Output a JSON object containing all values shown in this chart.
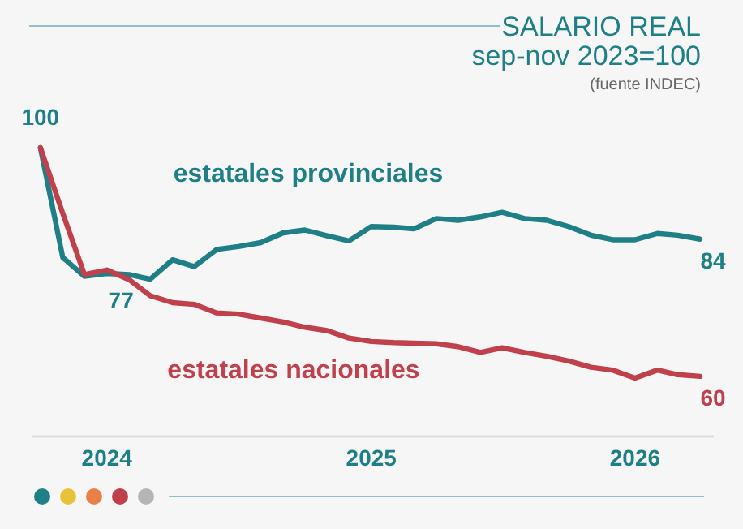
{
  "chart_data": {
    "type": "line",
    "title": "SALARIO REAL",
    "subtitle": "sep-nov 2023=100",
    "annotations": [
      "(fuente INDEC)"
    ],
    "x": [
      "2023-10",
      "2023-11",
      "2023-12",
      "2024-01",
      "2024-02",
      "2024-03",
      "2024-04",
      "2024-05",
      "2024-06",
      "2024-07",
      "2024-08",
      "2024-09",
      "2024-10",
      "2024-11",
      "2024-12",
      "2025-01",
      "2025-02",
      "2025-03",
      "2025-04",
      "2025-05",
      "2025-06",
      "2025-07",
      "2025-08",
      "2025-09",
      "2025-10",
      "2025-11",
      "2025-12",
      "2026-01",
      "2026-02",
      "2026-03",
      "2026-04"
    ],
    "xlim": [
      "2023-09-20",
      "2026-04-20"
    ],
    "xticks": [
      {
        "value": "2024-01",
        "label": "2024"
      },
      {
        "value": "2025-01",
        "label": "2025"
      },
      {
        "value": "2026-01",
        "label": "2026"
      }
    ],
    "tick_labels": "x",
    "series": [
      {
        "name": "estatales provinciales",
        "color": "#1f7f86",
        "values": [
          100,
          80.8,
          77.5,
          78,
          77.8,
          77,
          80.4,
          79.2,
          82.2,
          82.7,
          83.4,
          85.1,
          85.6,
          84.6,
          83.7,
          86.2,
          86.1,
          85.8,
          87.6,
          87.3,
          87.9,
          88.7,
          87.6,
          87.3,
          86.2,
          84.7,
          83.9,
          83.9,
          85,
          84.7,
          84
        ],
        "value_labels": [
          "100",
          null,
          null,
          null,
          null,
          "77",
          null,
          null,
          null,
          null,
          null,
          null,
          null,
          null,
          null,
          null,
          null,
          null,
          null,
          null,
          null,
          null,
          null,
          null,
          null,
          null,
          null,
          null,
          null,
          null,
          "84"
        ]
      },
      {
        "name": "estatales nacionales",
        "color": "#c0404c",
        "values": [
          100,
          88.5,
          77.8,
          78.6,
          76.9,
          74.1,
          72.9,
          72.6,
          71.1,
          70.9,
          70.2,
          69.5,
          68.6,
          68,
          66.7,
          66.1,
          65.9,
          65.8,
          65.7,
          65.2,
          64.2,
          65,
          64.2,
          63.5,
          62.7,
          61.6,
          61.1,
          59.7,
          61.1,
          60.3,
          60
        ],
        "value_labels": [
          null,
          null,
          null,
          null,
          null,
          null,
          null,
          null,
          null,
          null,
          null,
          null,
          null,
          null,
          null,
          null,
          null,
          null,
          null,
          null,
          null,
          null,
          null,
          null,
          null,
          null,
          null,
          null,
          null,
          null,
          "60"
        ]
      }
    ],
    "legend": false,
    "marker": "none",
    "line_style": "solid"
  }
}
